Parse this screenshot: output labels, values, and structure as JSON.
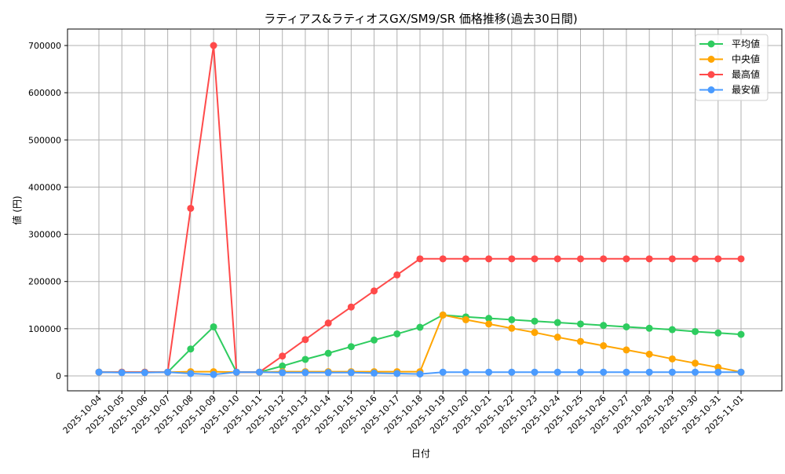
{
  "chart_data": {
    "type": "line",
    "title": "ラティアス&ラティオスGX/SM9/SR 価格推移(過去30日間)",
    "xlabel": "日付",
    "ylabel": "値 (円)",
    "ylim": [
      -30000,
      735000
    ],
    "yticks": [
      0,
      100000,
      200000,
      300000,
      400000,
      500000,
      600000,
      700000
    ],
    "grid": true,
    "legend_position": "upper right",
    "categories": [
      "2025-10-04",
      "2025-10-05",
      "2025-10-06",
      "2025-10-07",
      "2025-10-08",
      "2025-10-09",
      "2025-10-10",
      "2025-10-11",
      "2025-10-12",
      "2025-10-13",
      "2025-10-14",
      "2025-10-15",
      "2025-10-16",
      "2025-10-17",
      "2025-10-18",
      "2025-10-19",
      "2025-10-20",
      "2025-10-21",
      "2025-10-22",
      "2025-10-23",
      "2025-10-24",
      "2025-10-25",
      "2025-10-26",
      "2025-10-27",
      "2025-10-28",
      "2025-10-29",
      "2025-10-30",
      "2025-10-31",
      "2025-11-01"
    ],
    "series": [
      {
        "name": "平均値",
        "color": "#2ecc5f",
        "values": [
          8000,
          8000,
          8000,
          8000,
          57000,
          104000,
          8000,
          8000,
          21000,
          35000,
          48000,
          62000,
          76000,
          89000,
          103000,
          129000,
          125000,
          122000,
          119000,
          116000,
          113000,
          110000,
          107000,
          104000,
          101000,
          98000,
          94000,
          91000,
          88000
        ]
      },
      {
        "name": "中央値",
        "color": "#ffa500",
        "values": [
          8000,
          8000,
          8000,
          8000,
          9000,
          9000,
          8000,
          8000,
          9000,
          9000,
          9000,
          9000,
          9000,
          9000,
          9000,
          129000,
          119000,
          110000,
          101000,
          92000,
          82000,
          73000,
          64000,
          55000,
          46000,
          36000,
          27000,
          18000,
          8000
        ]
      },
      {
        "name": "最高値",
        "color": "#ff4a4a",
        "values": [
          8000,
          8000,
          8000,
          8000,
          355000,
          700000,
          8000,
          8000,
          42000,
          77000,
          112000,
          146000,
          180000,
          214000,
          248000,
          248000,
          248000,
          248000,
          248000,
          248000,
          248000,
          248000,
          248000,
          248000,
          248000,
          248000,
          248000,
          248000,
          248000
        ]
      },
      {
        "name": "最安値",
        "color": "#4a9bff",
        "values": [
          8000,
          7000,
          7000,
          8000,
          5000,
          3000,
          8000,
          8000,
          7000,
          7000,
          7000,
          7000,
          6000,
          5000,
          4000,
          8000,
          8000,
          8000,
          8000,
          8000,
          8000,
          8000,
          8000,
          8000,
          8000,
          8000,
          8000,
          8000,
          8000
        ]
      }
    ]
  }
}
